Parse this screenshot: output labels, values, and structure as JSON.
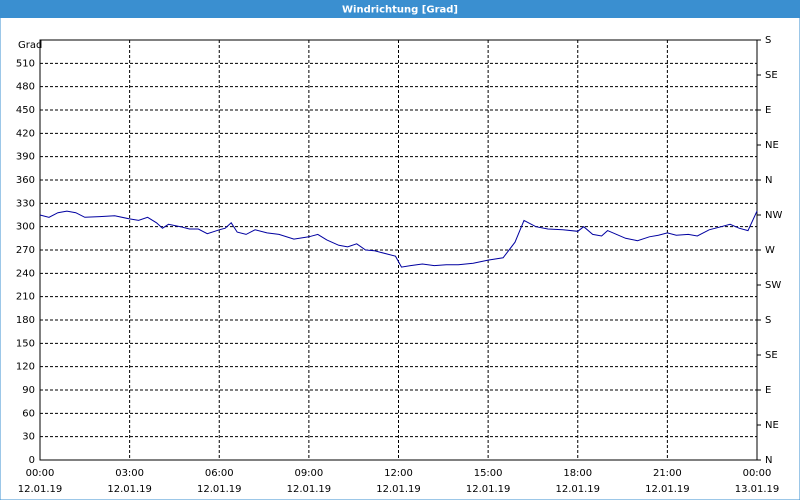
{
  "chart_data": {
    "type": "line",
    "title": "Windrichtung [Grad]",
    "y_label": "Grad",
    "color": "#0000a0",
    "grid": true,
    "x": [
      0,
      0.3,
      0.6,
      0.9,
      1.2,
      1.5,
      2,
      2.5,
      3,
      3.3,
      3.6,
      3.9,
      4.1,
      4.3,
      4.7,
      5,
      5.3,
      5.6,
      6,
      6.2,
      6.4,
      6.6,
      6.9,
      7.2,
      7.6,
      8,
      8.5,
      9,
      9.3,
      9.6,
      10,
      10.3,
      10.6,
      10.9,
      11.2,
      11.6,
      11.9,
      12.1,
      12.4,
      12.8,
      13.2,
      13.6,
      14,
      14.5,
      15,
      15.5,
      15.9,
      16.2,
      16.6,
      17,
      17.5,
      18,
      18.2,
      18.5,
      18.8,
      19,
      19.3,
      19.6,
      20,
      20.4,
      20.7,
      21,
      21.3,
      21.7,
      22,
      22.4,
      22.8,
      23.1,
      23.4,
      23.7,
      24
    ],
    "values": [
      315,
      312,
      318,
      320,
      318,
      312,
      313,
      314,
      310,
      308,
      312,
      305,
      298,
      303,
      300,
      297,
      297,
      291,
      296,
      298,
      305,
      293,
      290,
      296,
      292,
      290,
      284,
      287,
      290,
      283,
      276,
      274,
      278,
      270,
      269,
      265,
      262,
      248,
      250,
      252,
      250,
      251,
      251,
      253,
      257,
      260,
      280,
      308,
      300,
      297,
      296,
      294,
      300,
      290,
      288,
      295,
      290,
      285,
      282,
      287,
      289,
      292,
      289,
      290,
      288,
      296,
      300,
      303,
      298,
      295,
      320
    ],
    "xlim": [
      0,
      24
    ],
    "xticks": [
      {
        "value": 0,
        "label": "00:00",
        "date": "12.01.19"
      },
      {
        "value": 3,
        "label": "03:00",
        "date": "12.01.19"
      },
      {
        "value": 6,
        "label": "06:00",
        "date": "12.01.19"
      },
      {
        "value": 9,
        "label": "09:00",
        "date": "12.01.19"
      },
      {
        "value": 12,
        "label": "12:00",
        "date": "12.01.19"
      },
      {
        "value": 15,
        "label": "15:00",
        "date": "12.01.19"
      },
      {
        "value": 18,
        "label": "18:00",
        "date": "12.01.19"
      },
      {
        "value": 21,
        "label": "21:00",
        "date": "12.01.19"
      },
      {
        "value": 24,
        "label": "00:00",
        "date": "13.01.19"
      }
    ],
    "ylim": [
      0,
      540
    ],
    "yticks": [
      0,
      30,
      60,
      90,
      120,
      150,
      180,
      210,
      240,
      270,
      300,
      330,
      360,
      390,
      420,
      450,
      480,
      510
    ],
    "y2lim": [
      0,
      540
    ],
    "y2ticks": [
      {
        "value": 0,
        "label": "N"
      },
      {
        "value": 45,
        "label": "NE"
      },
      {
        "value": 90,
        "label": "E"
      },
      {
        "value": 135,
        "label": "SE"
      },
      {
        "value": 180,
        "label": "S"
      },
      {
        "value": 225,
        "label": "SW"
      },
      {
        "value": 270,
        "label": "W"
      },
      {
        "value": 315,
        "label": "NW"
      },
      {
        "value": 360,
        "label": "N"
      },
      {
        "value": 405,
        "label": "NE"
      },
      {
        "value": 450,
        "label": "E"
      },
      {
        "value": 495,
        "label": "SE"
      },
      {
        "value": 540,
        "label": "S"
      }
    ]
  }
}
